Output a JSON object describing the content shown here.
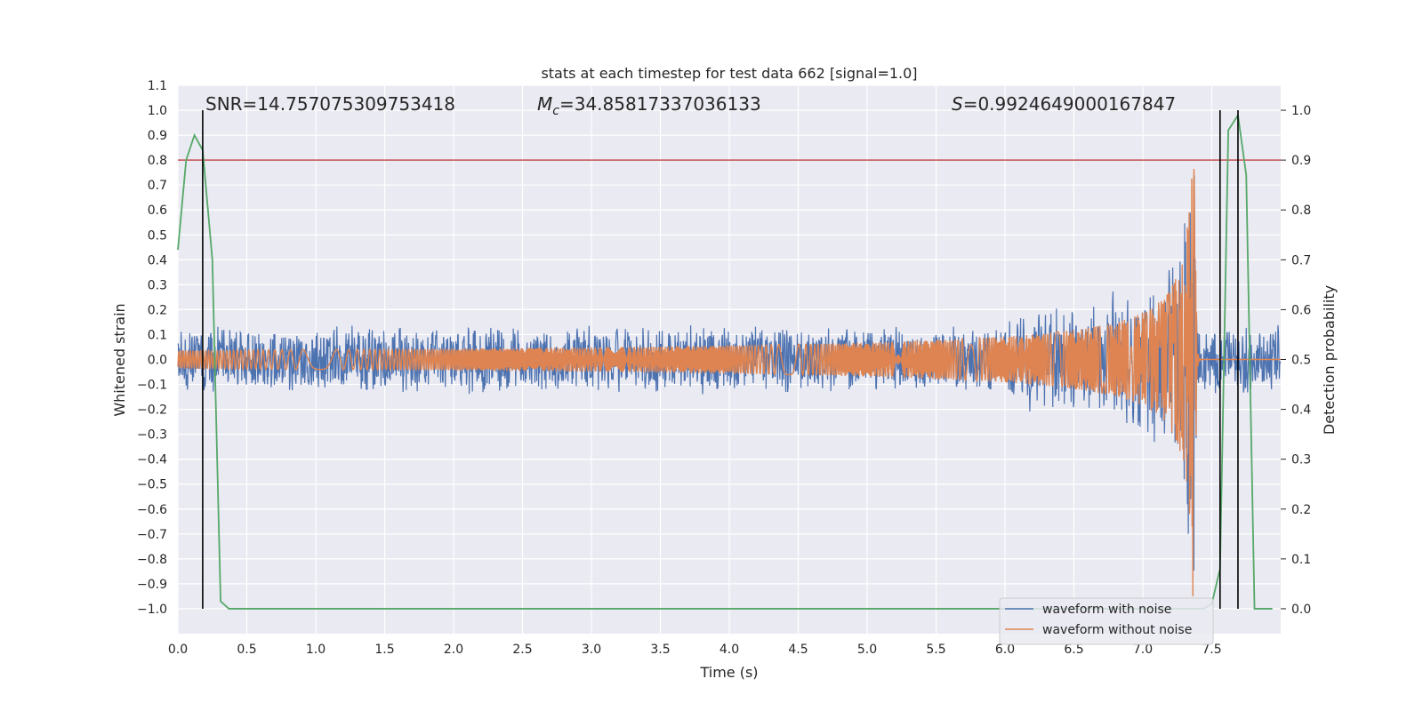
{
  "chart_data": {
    "type": "line",
    "title": "stats at each timestep for test data 662 [signal=1.0]",
    "xlabel": "Time (s)",
    "ylabel_left": "Whitened strain",
    "ylabel_right": "Detection probability",
    "xlim": [
      0.0,
      8.0
    ],
    "ylim_left": [
      -1.1,
      1.1
    ],
    "ylim_right": [
      -0.05,
      1.05
    ],
    "x_ticks": [
      "0.0",
      "0.5",
      "1.0",
      "1.5",
      "2.0",
      "2.5",
      "3.0",
      "3.5",
      "4.0",
      "4.5",
      "5.0",
      "5.5",
      "6.0",
      "6.5",
      "7.0",
      "7.5"
    ],
    "y_left_ticks": [
      "1.1",
      "1.0",
      "0.9",
      "0.8",
      "0.7",
      "0.6",
      "0.5",
      "0.4",
      "0.3",
      "0.2",
      "0.1",
      "0.0",
      "−0.1",
      "−0.2",
      "−0.3",
      "−0.4",
      "−0.5",
      "−0.6",
      "−0.7",
      "−0.8",
      "−0.9",
      "−1.0"
    ],
    "y_right_ticks": [
      "1.0",
      "0.9",
      "0.8",
      "0.7",
      "0.6",
      "0.5",
      "0.4",
      "0.3",
      "0.2",
      "0.1",
      "0.0"
    ],
    "grid": true,
    "annotations": {
      "snr": "SNR=14.757075309753418",
      "mc_symbol": "M",
      "mc_sub": "c",
      "mc_value": "=34.85817337036133",
      "s_symbol": "S",
      "s_value": "=0.9924649000167847"
    },
    "legend": {
      "placement": "lower-right",
      "entries": [
        {
          "label": "waveform with noise",
          "color": "#4c72b0"
        },
        {
          "label": "waveform without noise",
          "color": "#dd8452"
        }
      ]
    },
    "colors": {
      "noisy": "#4c72b0",
      "clean": "#dd8452",
      "probability": "#55a868",
      "threshold": "#c44e52",
      "markers": "#000000",
      "background": "#eaeaf2"
    },
    "threshold_right_axis": 0.9,
    "vertical_markers_x": [
      0.18,
      7.56,
      7.69
    ],
    "noise_band_left": [
      -0.14,
      0.14
    ],
    "merger_time": 7.38,
    "series": [
      {
        "name": "waveform with noise",
        "description_values": "noise band approx ±0.14 strain, chirp peaking at ~1.0 near t=7.38 s"
      },
      {
        "name": "waveform without noise",
        "description_values": "chirp envelope growing from ~0 at t=2.5 s to ~0.95 at t=7.38 s, then ringdown"
      },
      {
        "name": "detection probability",
        "x": [
          0.0,
          0.06,
          0.12,
          0.18,
          0.25,
          0.31,
          0.37,
          0.5,
          1.0,
          2.0,
          3.0,
          4.0,
          5.0,
          6.0,
          7.0,
          7.44,
          7.5,
          7.56,
          7.62,
          7.69,
          7.75,
          7.81,
          7.87,
          7.94
        ],
        "values": [
          0.72,
          0.9,
          0.95,
          0.92,
          0.7,
          0.015,
          0.0,
          0.0,
          0.0,
          0.0,
          0.0,
          0.0,
          0.0,
          0.0,
          0.0,
          0.0,
          0.01,
          0.08,
          0.96,
          0.99,
          0.87,
          0.0,
          0.0,
          0.0
        ]
      }
    ]
  }
}
